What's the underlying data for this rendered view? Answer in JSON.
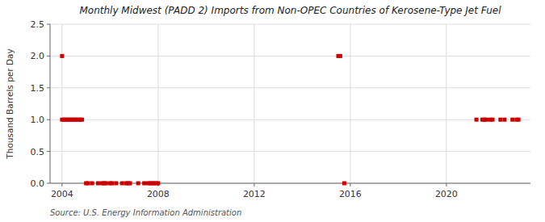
{
  "chart_data": {
    "type": "scatter",
    "title": "Monthly Midwest (PADD 2) Imports from Non-OPEC Countries of Kerosene-Type Jet Fuel",
    "ylabel": "Thousand Barrels per Day",
    "source": "Source: U.S. Energy Information Administration",
    "color": "#cc0000",
    "marker": "square",
    "grid": true,
    "xlim": [
      2003.5,
      2023.5
    ],
    "xticks": [
      2004,
      2008,
      2012,
      2016,
      2020
    ],
    "ylim": [
      0,
      2.5
    ],
    "yticks": [
      {
        "value": 0.0,
        "label": "0.0"
      },
      0.5,
      {
        "value": 1.0,
        "label": "1.0"
      },
      1.5,
      {
        "value": 2.0,
        "label": "2.0"
      },
      2.5
    ],
    "x": [
      2004.0,
      2004.0,
      2004.08,
      2004.17,
      2004.25,
      2004.33,
      2004.42,
      2004.5,
      2004.58,
      2004.67,
      2004.75,
      2004.83,
      2005.0,
      2005.08,
      2005.25,
      2005.5,
      2005.67,
      2005.75,
      2005.83,
      2006.0,
      2006.08,
      2006.25,
      2006.5,
      2006.67,
      2006.75,
      2006.83,
      2007.17,
      2007.42,
      2007.58,
      2007.67,
      2007.75,
      2007.83,
      2007.92,
      2008.0,
      2015.5,
      2015.58,
      2015.75,
      2021.25,
      2021.5,
      2021.58,
      2021.67,
      2021.83,
      2021.92,
      2022.25,
      2022.42,
      2022.75,
      2022.92,
      2023.0
    ],
    "values": [
      2.0,
      1.0,
      1.0,
      1.0,
      1.0,
      1.0,
      1.0,
      1.0,
      1.0,
      1.0,
      1.0,
      1.0,
      0.0,
      0.0,
      0.0,
      0.0,
      0.0,
      0.0,
      0.0,
      0.0,
      0.0,
      0.0,
      0.0,
      0.0,
      0.0,
      0.0,
      0.0,
      0.0,
      0.0,
      0.0,
      0.0,
      0.0,
      0.0,
      0.0,
      2.0,
      2.0,
      0.0,
      1.0,
      1.0,
      1.0,
      1.0,
      1.0,
      1.0,
      1.0,
      1.0,
      1.0,
      1.0,
      1.0
    ]
  }
}
